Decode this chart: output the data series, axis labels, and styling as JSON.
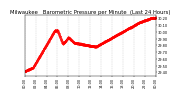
{
  "title": "Milwaukee   Barometric Pressure per Minute  (Last 24 Hours)",
  "bg_color": "#ffffff",
  "plot_bg_color": "#ffffff",
  "line_color": "#ff0000",
  "grid_color": "#bbbbbb",
  "ylim": [
    29.35,
    30.25
  ],
  "yticks": [
    29.4,
    29.5,
    29.6,
    29.7,
    29.8,
    29.9,
    30.0,
    30.1,
    30.2
  ],
  "xlim": [
    0,
    24
  ],
  "num_points": 1440,
  "title_fontsize": 3.8,
  "tick_fontsize": 2.5,
  "marker_size": 0.35
}
